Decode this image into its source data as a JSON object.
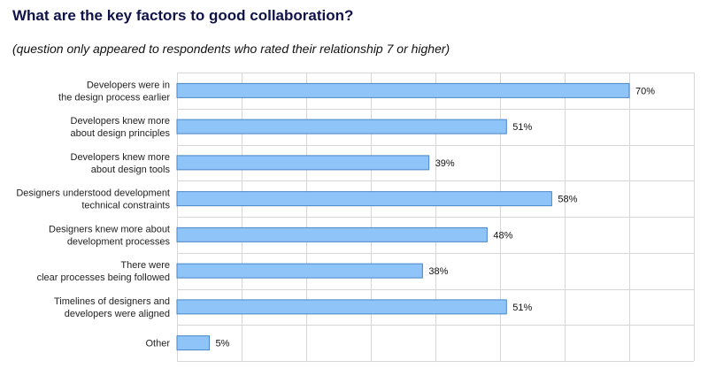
{
  "page": {
    "title": "What are the key factors to good collaboration?",
    "subtitle": "(question only appeared to respondents who rated their relationship 7 or higher)"
  },
  "colors": {
    "bar_fill": "#8ec4f8",
    "bar_stroke": "#4a86c8",
    "grid": "#d6d6d6",
    "title": "#10124a"
  },
  "chart_data": {
    "type": "bar",
    "orientation": "horizontal",
    "categories": [
      [
        "Developers were in",
        "the design process earlier"
      ],
      [
        "Developers knew more",
        "about design principles"
      ],
      [
        "Developers knew more",
        "about design tools"
      ],
      [
        "Designers understood development",
        "technical constraints"
      ],
      [
        "Designers knew more about",
        "development processes"
      ],
      [
        "There were",
        "clear processes being followed"
      ],
      [
        "Timelines of designers and",
        "developers were aligned"
      ],
      [
        "Other"
      ]
    ],
    "values": [
      70,
      51,
      39,
      58,
      48,
      38,
      51,
      5
    ],
    "value_labels": [
      "70%",
      "51%",
      "39%",
      "58%",
      "48%",
      "38%",
      "51%",
      "5%"
    ],
    "unit": "%",
    "xlim": [
      0,
      80
    ],
    "grid": true
  }
}
